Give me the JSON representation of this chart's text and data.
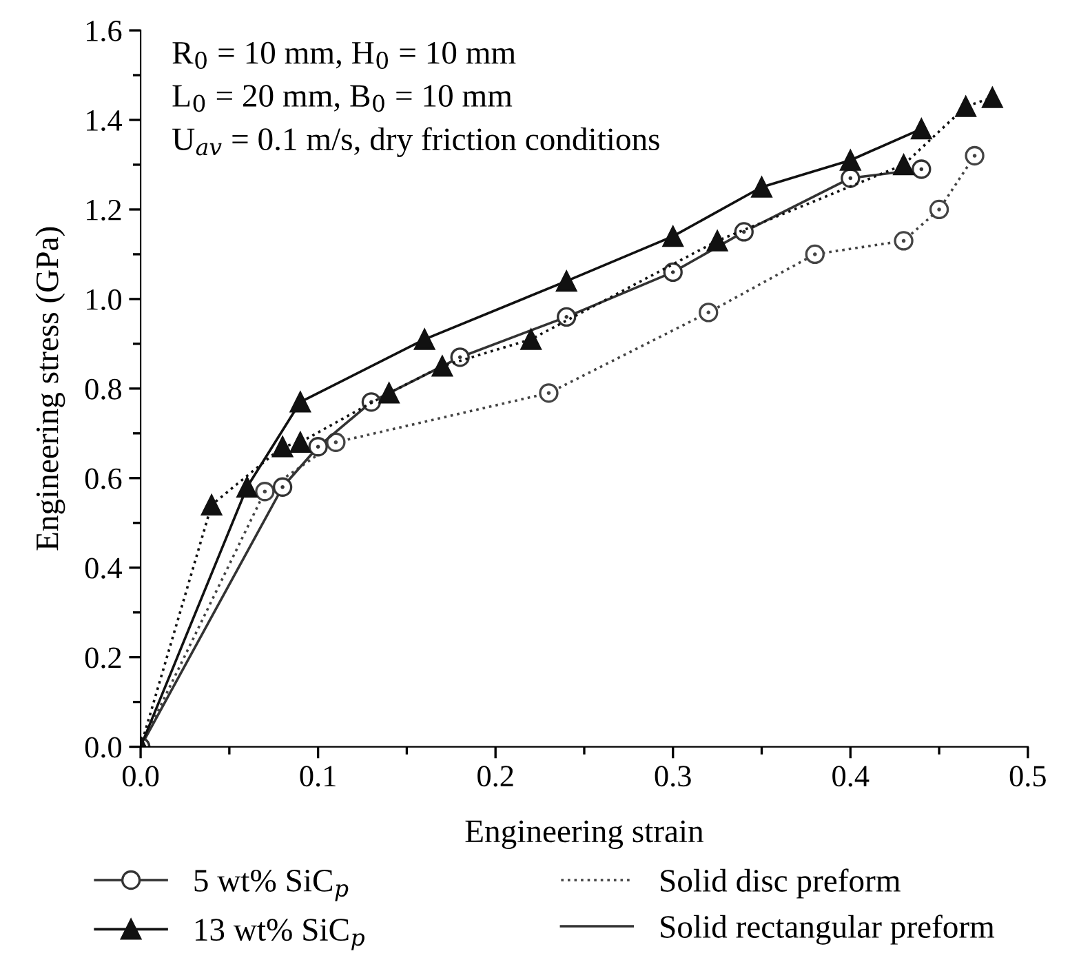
{
  "chart_data": {
    "type": "line",
    "xlabel": "Engineering strain",
    "ylabel": "Engineering stress (GPa)",
    "xlim": [
      0,
      0.5
    ],
    "ylim": [
      0,
      1.6
    ],
    "xticks": [
      {
        "value": 0,
        "label": "0.0"
      },
      {
        "value": 0.05,
        "label": null
      },
      0.1,
      {
        "value": 0.15,
        "label": null
      },
      0.2,
      {
        "value": 0.25,
        "label": null
      },
      0.3,
      {
        "value": 0.35,
        "label": null
      },
      0.4,
      {
        "value": 0.45,
        "label": null
      },
      0.5
    ],
    "yticks": [
      {
        "value": 0,
        "label": "0.0"
      },
      {
        "value": 0.1,
        "label": null
      },
      0.2,
      {
        "value": 0.3,
        "label": null
      },
      0.4,
      {
        "value": 0.5,
        "label": null
      },
      0.6,
      {
        "value": 0.7,
        "label": null
      },
      0.8,
      {
        "value": 0.9,
        "label": null
      },
      {
        "value": 1.0,
        "label": "1.0"
      },
      {
        "value": 1.1,
        "label": null
      },
      1.2,
      {
        "value": 1.3,
        "label": null
      },
      1.4,
      {
        "value": 1.5,
        "label": null
      },
      1.6
    ],
    "grid": false,
    "legend": "bottom",
    "annotations": [
      "R$_{0}$ = 10 mm, H$_{0}$ = 10 mm",
      "L$_{0}$ = 20 mm, B$_{0}$ = 10 mm",
      "U$_{av}$ = 0.1 m/s, dry friction conditions",
      "Solid disc preform",
      "Solid rectangular preform"
    ],
    "series": [
      {
        "color": "#444444",
        "marker": "circle",
        "line_style": "dotted",
        "x": [
          0,
          0.07,
          0.11,
          0.23,
          0.32,
          0.38,
          0.43,
          0.45,
          0.47
        ],
        "values": [
          0,
          0.57,
          0.68,
          0.79,
          0.97,
          1.1,
          1.13,
          1.2,
          1.32
        ]
      },
      {
        "name": "5 wt% SiC$_{p}$",
        "color": "#333333",
        "marker": "circle",
        "line_style": "solid",
        "x": [
          0,
          0.08,
          0.1,
          0.13,
          0.18,
          0.24,
          0.3,
          0.34,
          0.4,
          0.44
        ],
        "values": [
          0,
          0.58,
          0.67,
          0.77,
          0.87,
          0.96,
          1.06,
          1.15,
          1.27,
          1.29
        ]
      },
      {
        "color": "#111111",
        "marker": "triangle",
        "line_style": "dotted",
        "x": [
          0,
          0.04,
          0.08,
          0.09,
          0.14,
          0.17,
          0.22,
          0.325,
          0.43,
          0.465,
          0.48
        ],
        "values": [
          0,
          0.54,
          0.67,
          0.68,
          0.79,
          0.85,
          0.91,
          1.13,
          1.3,
          1.43,
          1.45
        ]
      },
      {
        "name": "13 wt% SiC$_{p}$",
        "color": "#111111",
        "marker": "triangle",
        "line_style": "solid",
        "x": [
          0,
          0.06,
          0.09,
          0.16,
          0.24,
          0.3,
          0.35,
          0.4,
          0.44
        ],
        "values": [
          0,
          0.58,
          0.77,
          0.91,
          1.04,
          1.14,
          1.25,
          1.31,
          1.38
        ]
      }
    ]
  }
}
